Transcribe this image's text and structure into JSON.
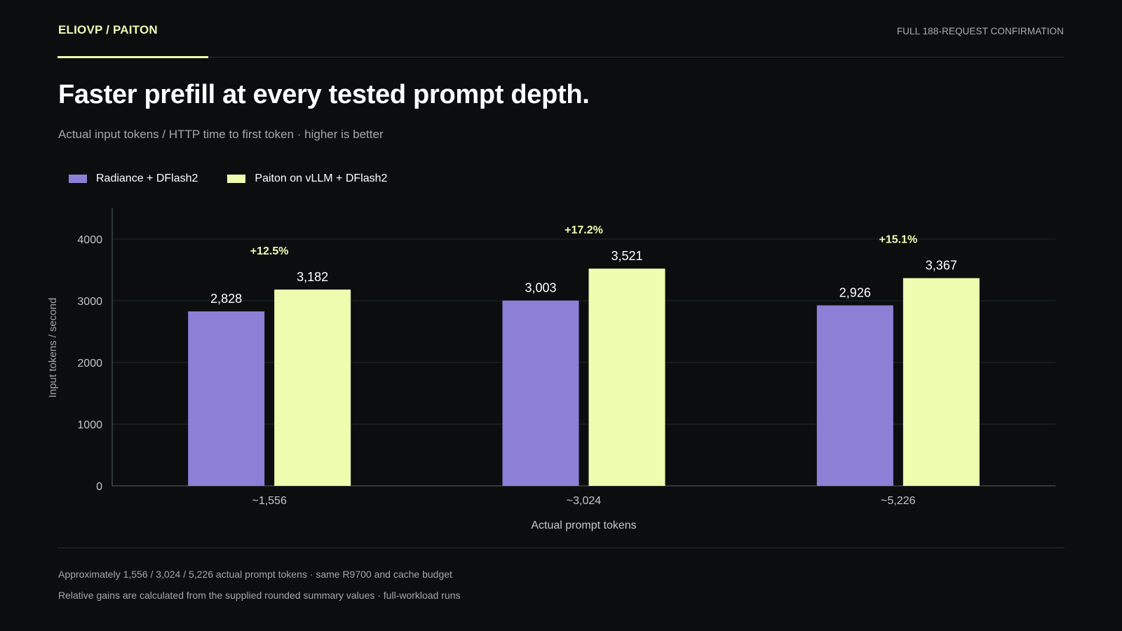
{
  "header": {
    "brand": "ELIOVP / PAITON",
    "kicker": "FULL 188-REQUEST CONFIRMATION",
    "title": "Faster prefill at every tested prompt depth.",
    "subtitle": "Actual input tokens / HTTP time to first token · higher is better"
  },
  "colors": {
    "radiance": "#8d7fd6",
    "paiton": "#eefcb0",
    "gain": "#eefcb0",
    "grid": "#1e2a29",
    "axis": "#3a4645",
    "tick_text": "#c4c8cb",
    "label_text": "#a3a8ac"
  },
  "chart_data": {
    "type": "bar",
    "categories": [
      "~1,556",
      "~3,024",
      "~5,226"
    ],
    "series": [
      {
        "name": "Radiance + DFlash2",
        "values": [
          2828,
          3003,
          2926
        ],
        "labels": [
          "2,828",
          "3,003",
          "2,926"
        ]
      },
      {
        "name": "Paiton on vLLM + DFlash2",
        "values": [
          3182,
          3521,
          3367
        ],
        "labels": [
          "3,182",
          "3,521",
          "3,367"
        ]
      }
    ],
    "gains": [
      "+12.5%",
      "+17.2%",
      "+15.1%"
    ],
    "xlabel": "Actual prompt tokens",
    "ylabel": "Input tokens / second",
    "yticks": [
      0,
      1000,
      2000,
      3000,
      4000
    ],
    "ylim": [
      0,
      4500
    ],
    "grid": true,
    "legend": "top-left"
  },
  "footnotes": [
    "Approximately 1,556 / 3,024 / 5,226 actual prompt tokens · same R9700 and cache budget",
    "Relative gains are calculated from the supplied rounded summary values · full-workload runs"
  ]
}
